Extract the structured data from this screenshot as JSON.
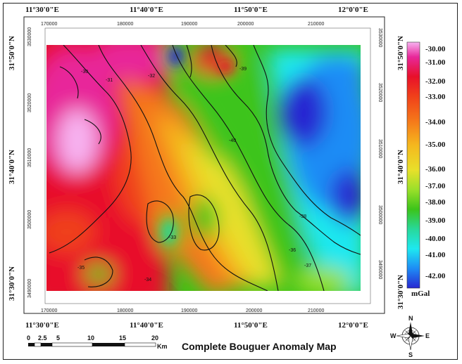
{
  "map": {
    "title": "Complete Bouguer Anomaly Map",
    "lon_labels": [
      "11°30'0\"E",
      "11°40'0\"E",
      "11°50'0\"E",
      "12°0'0\"E"
    ],
    "lat_labels": [
      "31°50'0\"N",
      "31°40'0\"N",
      "31°30'0\"N"
    ],
    "easting_labels": [
      "170000",
      "180000",
      "190000",
      "200000",
      "210000"
    ],
    "northing_labels": [
      "3530000",
      "3520000",
      "3510000",
      "3500000",
      "3490000"
    ],
    "contour_labels": [
      "-30",
      "-31",
      "-32",
      "-33",
      "-34",
      "-35",
      "-36",
      "-37",
      "-38",
      "-39",
      "-40"
    ]
  },
  "legend": {
    "unit": "mGal",
    "values": [
      "-30.00",
      "-31.00",
      "-32.00",
      "-33.00",
      "-34.00",
      "-35.00",
      "-36.00",
      "-37.00",
      "-38.00",
      "-39.00",
      "-40.00",
      "-41.00",
      "-42.00"
    ],
    "colors": [
      "#f7b2f0",
      "#e8289a",
      "#e8102a",
      "#f0401a",
      "#f5781a",
      "#f5b81e",
      "#e8e02a",
      "#9ae02a",
      "#3cc41a",
      "#28d89a",
      "#1ee8f0",
      "#1e8cf5",
      "#2828d2"
    ]
  },
  "scale_bar": {
    "labels": [
      "0",
      "2.5",
      "5",
      "10",
      "15",
      "20"
    ],
    "unit": "Km"
  },
  "north_arrow": {
    "labels": [
      "N",
      "E",
      "S",
      "W"
    ]
  },
  "colors": {
    "contour": "#111111",
    "frame": "#222222"
  }
}
